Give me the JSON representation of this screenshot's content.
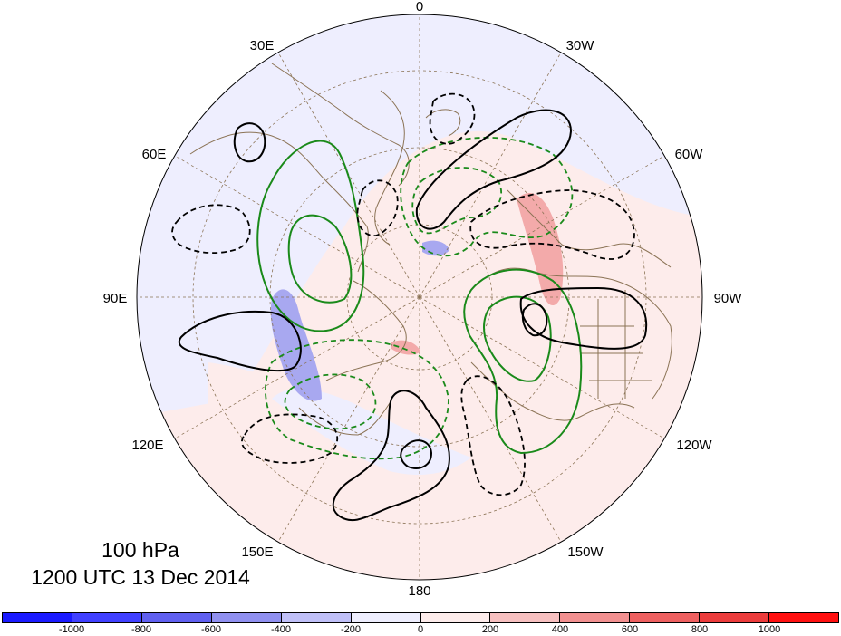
{
  "map": {
    "level": "100 hPa",
    "valid_time": "1200 UTC 13 Dec 2014",
    "projection": "north-polar-stereographic",
    "center_longitude": 0,
    "longitude_labels": [
      "0",
      "30W",
      "60W",
      "90W",
      "120W",
      "150W",
      "180",
      "150E",
      "120E",
      "90E",
      "60E",
      "30E"
    ],
    "contours": {
      "black_solid": "positive anomaly",
      "black_dashed": "negative anomaly",
      "green_solid": "positive anomaly",
      "green_dashed": "negative anomaly"
    }
  },
  "colorbar": {
    "labels": [
      "-1000",
      "-800",
      "-600",
      "-400",
      "-200",
      "0",
      "200",
      "400",
      "600",
      "800",
      "1000"
    ],
    "colors": [
      "#1a1aff",
      "#4040ff",
      "#6060f0",
      "#9090f0",
      "#c0c0f8",
      "#eeeefe",
      "#fdeceb",
      "#f7c0c0",
      "#f29090",
      "#ee6060",
      "#ec3c3c",
      "#ff1010"
    ]
  },
  "colors": {
    "coast": "#8b7355",
    "grid": "#8b7355",
    "black_contour": "#000000",
    "green_contour": "#1a8a1a",
    "pos_fill": "#fdeceb",
    "neg_fill": "#eeeefe",
    "pos_shade": "#f3aaaa",
    "neg_shade": "#a8a8f0"
  }
}
